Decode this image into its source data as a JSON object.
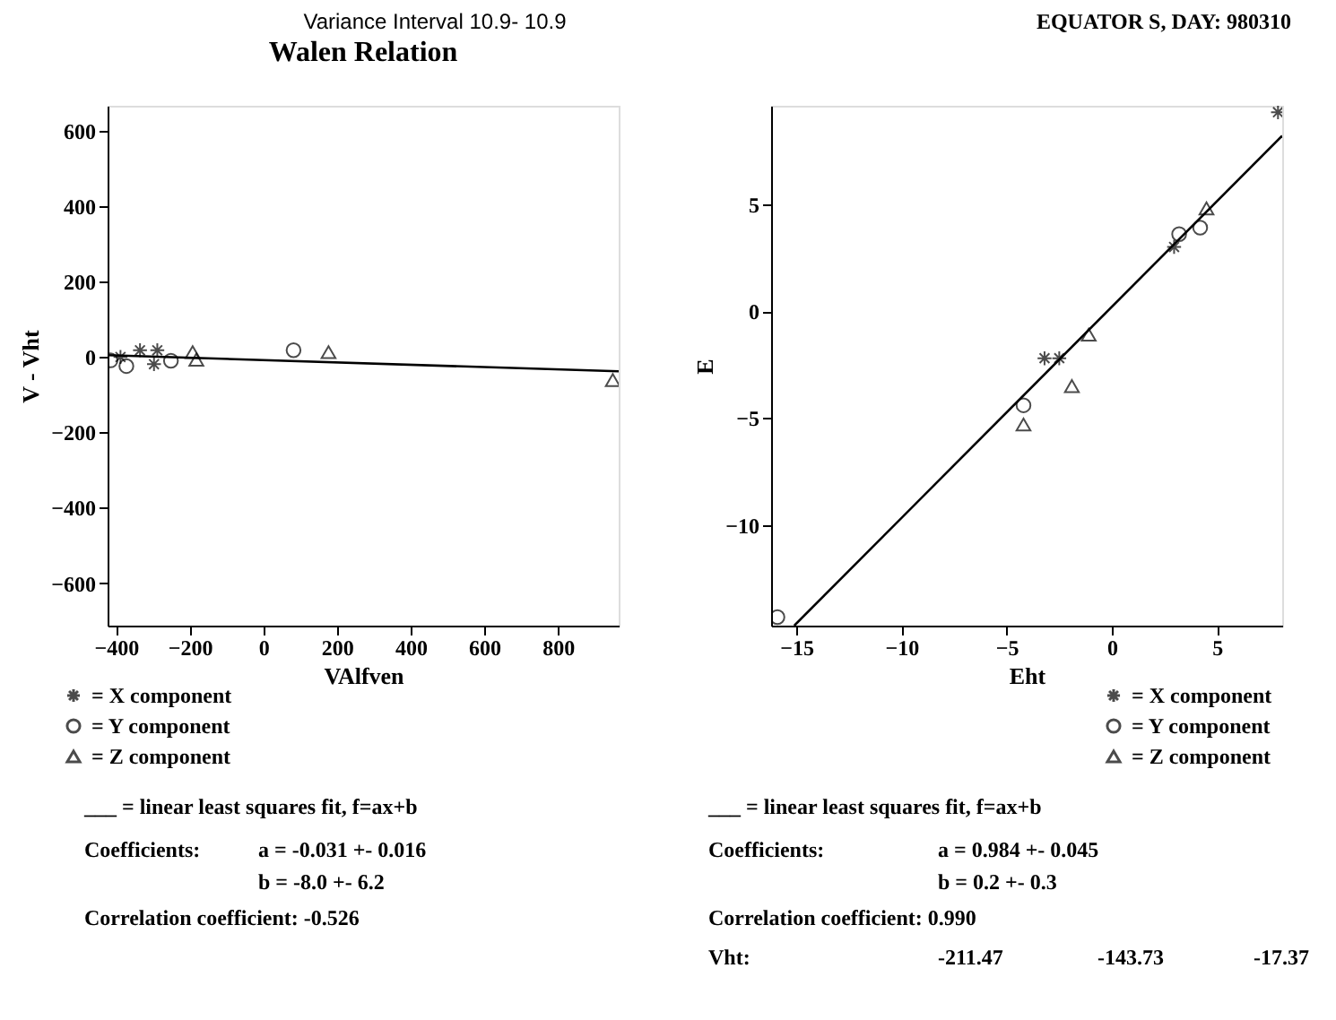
{
  "chart_data": [
    {
      "type": "scatter",
      "title": "Walen Relation",
      "xlabel": "VAlfven",
      "ylabel": "V - Vht",
      "xlim": [
        -423,
        965
      ],
      "ylim": [
        -713,
        667
      ],
      "xticks": [
        -400,
        -200,
        0,
        200,
        400,
        600,
        800
      ],
      "yticks": [
        -600,
        -400,
        -200,
        0,
        200,
        400,
        600
      ],
      "grid": false,
      "legend": "bottom left",
      "series": [
        {
          "name": "= X component",
          "color": "#000000",
          "marker": "cross",
          "x": [
            -388,
            -335,
            -288,
            -297
          ],
          "values": [
            0,
            18,
            18,
            -19
          ]
        },
        {
          "name": "= Y component",
          "color": "#000000",
          "marker": "circle",
          "x": [
            -415,
            -372,
            -251,
            82
          ],
          "values": [
            -9,
            -24,
            -10,
            18
          ]
        },
        {
          "name": "= Z component",
          "color": "#000000",
          "marker": "triangle",
          "x": [
            -192,
            -182,
            177,
            949
          ],
          "values": [
            13,
            -7,
            13,
            -61
          ]
        },
        {
          "type": "line",
          "color": "#000000",
          "x": [
            -423,
            965
          ],
          "values": [
            5,
            -38
          ]
        }
      ],
      "annotations": [
        "Variance Interval 10.9- 10.9",
        "___ = linear least squares fit, f=ax+b",
        "Coefficients:",
        "a = -0.031 +- 0.016",
        "b = -8.0 +- 6.2",
        "Correlation coefficient: -0.526"
      ]
    },
    {
      "type": "scatter",
      "xlabel": "Eht",
      "ylabel": "E",
      "xlim": [
        -16.2,
        8.1
      ],
      "ylim": [
        -14.7,
        9.6
      ],
      "xticks": [
        -15,
        -10,
        -5,
        0,
        5
      ],
      "yticks": [
        -10,
        -5,
        0,
        5
      ],
      "grid": false,
      "legend": "bottom right",
      "series": [
        {
          "name": "= X component",
          "color": "#000000",
          "marker": "cross",
          "x": [
            7.9,
            2.96,
            -3.2,
            -2.5
          ],
          "values": [
            9.3,
            3.0,
            -2.2,
            -2.2
          ]
        },
        {
          "name": "= Y component",
          "color": "#000000",
          "marker": "circle",
          "x": [
            -15.9,
            -4.2,
            3.2,
            4.2
          ],
          "values": [
            -14.3,
            -4.4,
            3.6,
            3.9
          ]
        },
        {
          "name": "= Z component",
          "color": "#000000",
          "marker": "triangle",
          "x": [
            -4.2,
            -1.9,
            -1.1,
            4.5
          ],
          "values": [
            -5.3,
            -3.5,
            -1.1,
            4.8
          ]
        },
        {
          "type": "line",
          "color": "#000000",
          "x": [
            -15.1,
            8.1
          ],
          "values": [
            -14.7,
            8.2
          ]
        }
      ],
      "annotations": [
        "EQUATOR S, DAY: 980310",
        "___ = linear least squares fit, f=ax+b",
        "Coefficients:",
        "a = 0.984 +- 0.045",
        "b = 0.2 +- 0.3",
        "Correlation coefficient: 0.990",
        "Vht:",
        "-211.47",
        "-143.73",
        "-17.37"
      ]
    }
  ]
}
